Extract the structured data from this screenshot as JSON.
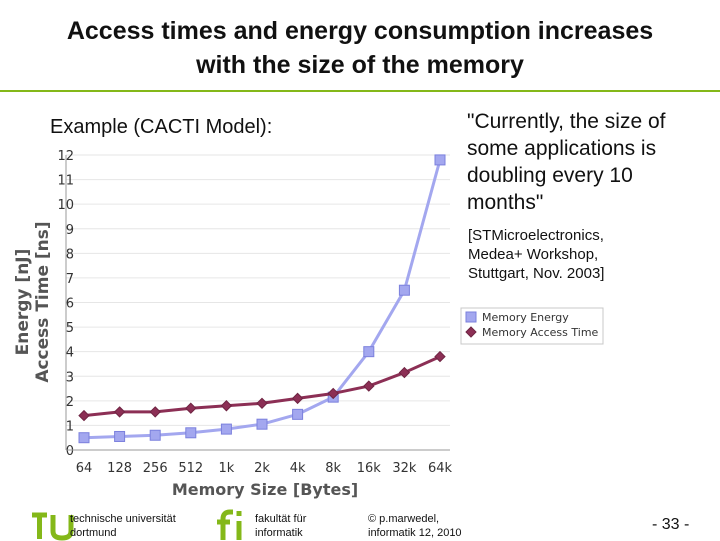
{
  "slide": {
    "title_line1": "Access times and energy consumption increases",
    "title_line2": "with the size of the memory",
    "example_label": "Example (CACTI Model):",
    "quote_lines": [
      "\"Currently, the size of",
      "some applications is",
      "doubling every 10",
      "months\""
    ],
    "citation_lines": [
      "[STMicroelectronics,",
      "Medea+ Workshop,",
      "Stuttgart, Nov. 2003]"
    ],
    "accent_color": "#84b819"
  },
  "footer": {
    "university_line1": "technische universität",
    "university_line2": "dortmund",
    "faculty_line1": "fakultät für",
    "faculty_line2": "informatik",
    "author_line1": "© p.marwedel,",
    "author_line2": "informatik 12,  2010",
    "page_number": "-  33 -"
  },
  "chart_data": {
    "type": "line",
    "xlabel": "Memory Size [Bytes]",
    "ylabel_line1": "Energy [nJ]",
    "ylabel_line2": "Access Time [ns]",
    "categories": [
      "64",
      "128",
      "256",
      "512",
      "1k",
      "2k",
      "4k",
      "8k",
      "16k",
      "32k",
      "64k"
    ],
    "yticks": [
      "0",
      "1",
      "2",
      "3",
      "4",
      "5",
      "6",
      "7",
      "8",
      "9",
      "10",
      "11",
      "12"
    ],
    "ylim": [
      0,
      12
    ],
    "grid": true,
    "legend_position": "right",
    "series": [
      {
        "name": "Memory Energy",
        "marker": "square",
        "color": "#a3a7ef",
        "edge": "#7b80dd",
        "values": [
          0.5,
          0.55,
          0.6,
          0.7,
          0.85,
          1.05,
          1.45,
          2.15,
          4.0,
          6.5,
          11.8
        ]
      },
      {
        "name": "Memory Access Time",
        "marker": "diamond",
        "color": "#8c2f55",
        "edge": "#6e2442",
        "values": [
          1.4,
          1.55,
          1.55,
          1.7,
          1.8,
          1.9,
          2.1,
          2.3,
          2.6,
          3.15,
          3.8
        ]
      }
    ]
  }
}
